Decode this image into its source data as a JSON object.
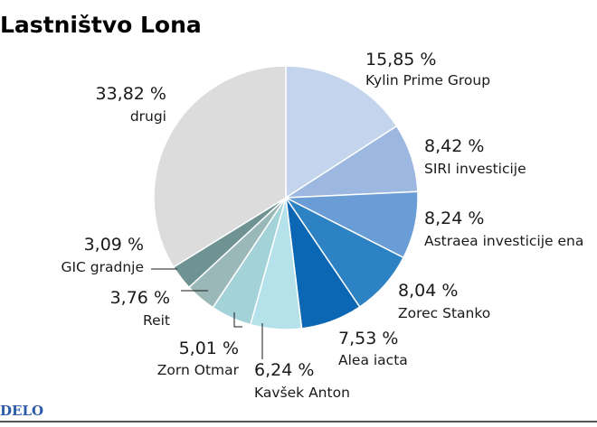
{
  "header": {
    "title": "Lastništvo Lona"
  },
  "footer": {
    "logo": "DELO"
  },
  "chart_data": {
    "type": "pie",
    "start": "12 o'clock",
    "direction": "clockwise",
    "slices": [
      {
        "label": "Kylin Prime Group",
        "value": 15.85,
        "value_label": "15,85 %",
        "color": "#c3d4ec"
      },
      {
        "label": "SIRI investicije",
        "value": 8.42,
        "value_label": "8,42 %",
        "color": "#9db8e0"
      },
      {
        "label": "Astraea investicije ena",
        "value": 8.24,
        "value_label": "8,24 %",
        "color": "#6a9cd5"
      },
      {
        "label": "Zorec Stanko",
        "value": 8.04,
        "value_label": "8,04 %",
        "color": "#2d82c4"
      },
      {
        "label": "Alea iacta",
        "value": 7.53,
        "value_label": "7,53 %",
        "color": "#0b67b3"
      },
      {
        "label": "Kavšek Anton",
        "value": 6.24,
        "value_label": "6,24 %",
        "color": "#b5e1ea"
      },
      {
        "label": "Zorn Otmar",
        "value": 5.01,
        "value_label": "5,01 %",
        "color": "#a3d3d8"
      },
      {
        "label": "Reit",
        "value": 3.76,
        "value_label": "3,76 %",
        "color": "#9bb8b8"
      },
      {
        "label": "GIC gradnje",
        "value": 3.09,
        "value_label": "3,09 %",
        "color": "#6f9393"
      },
      {
        "label": "drugi",
        "value": 33.82,
        "value_label": "33,82 %",
        "color": "#dcdcdc"
      }
    ]
  }
}
